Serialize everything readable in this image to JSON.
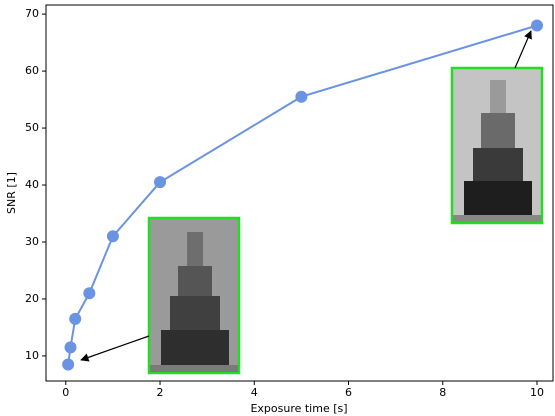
{
  "chart_data": {
    "type": "line",
    "x_label": "Exposure time [s]",
    "y_label": "SNR [1]",
    "x": [
      0.05,
      0.1,
      0.2,
      0.5,
      1,
      2,
      5,
      10
    ],
    "series": [
      {
        "color": "#6a93e2",
        "values": [
          8.5,
          11.5,
          16.5,
          21,
          31,
          40.5,
          55.5,
          68
        ]
      }
    ],
    "xlim": [
      -0.42,
      10.34
    ],
    "ylim": [
      5.6,
      71.6
    ],
    "xticks": [
      0,
      2,
      4,
      6,
      8,
      10
    ],
    "yticks": [
      10,
      20,
      30,
      40,
      50,
      60,
      70
    ]
  }
}
